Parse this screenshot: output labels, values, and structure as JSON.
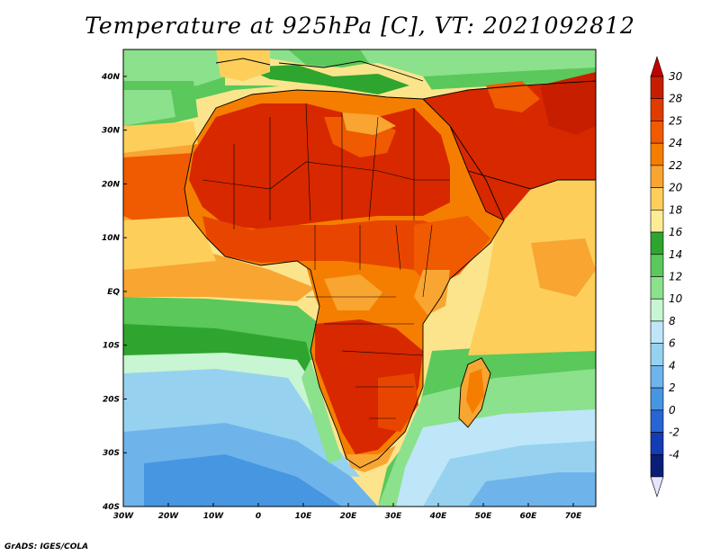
{
  "title": "Temperature at 925hPa [C], VT: 2021092812",
  "credit": "GrADS: IGES/COLA",
  "map": {
    "variable": "Temperature at 925hPa",
    "units": "C",
    "valid_time": "2021092812",
    "region": "Africa",
    "lon_range": [
      -30,
      75
    ],
    "lat_range": [
      -40,
      45
    ],
    "lon_ticks": [
      "30W",
      "20W",
      "10W",
      "0",
      "10E",
      "20E",
      "30E",
      "40E",
      "50E",
      "60E",
      "70E"
    ],
    "lat_ticks": [
      "40S",
      "30S",
      "20S",
      "10S",
      "EQ",
      "10N",
      "20N",
      "30N",
      "40N"
    ]
  },
  "colorbar": {
    "labels": [
      "30",
      "28",
      "25",
      "24",
      "22",
      "20",
      "18",
      "16",
      "14",
      "12",
      "10",
      "8",
      "6",
      "4",
      "2",
      "0",
      "-2",
      "-4"
    ],
    "colors": [
      "#c81e00",
      "#e03c00",
      "#f05a00",
      "#f57e00",
      "#f8a532",
      "#fdcf5a",
      "#fdeb96",
      "#2ea52e",
      "#5ac85a",
      "#8ce18c",
      "#c8f5d2",
      "#bee6f8",
      "#96d2f0",
      "#6eb4eb",
      "#4696e1",
      "#2864d2",
      "#143cb4",
      "#0a1e78"
    ],
    "top_color": "#c00000",
    "bottom_color": "#e6e6ff"
  },
  "features": {
    "hot_regions": "Sahara, Sahel, Arabian Peninsula, southern Africa interior",
    "cool_regions": "South Atlantic, Southern Indian Ocean, Mediterranean"
  }
}
